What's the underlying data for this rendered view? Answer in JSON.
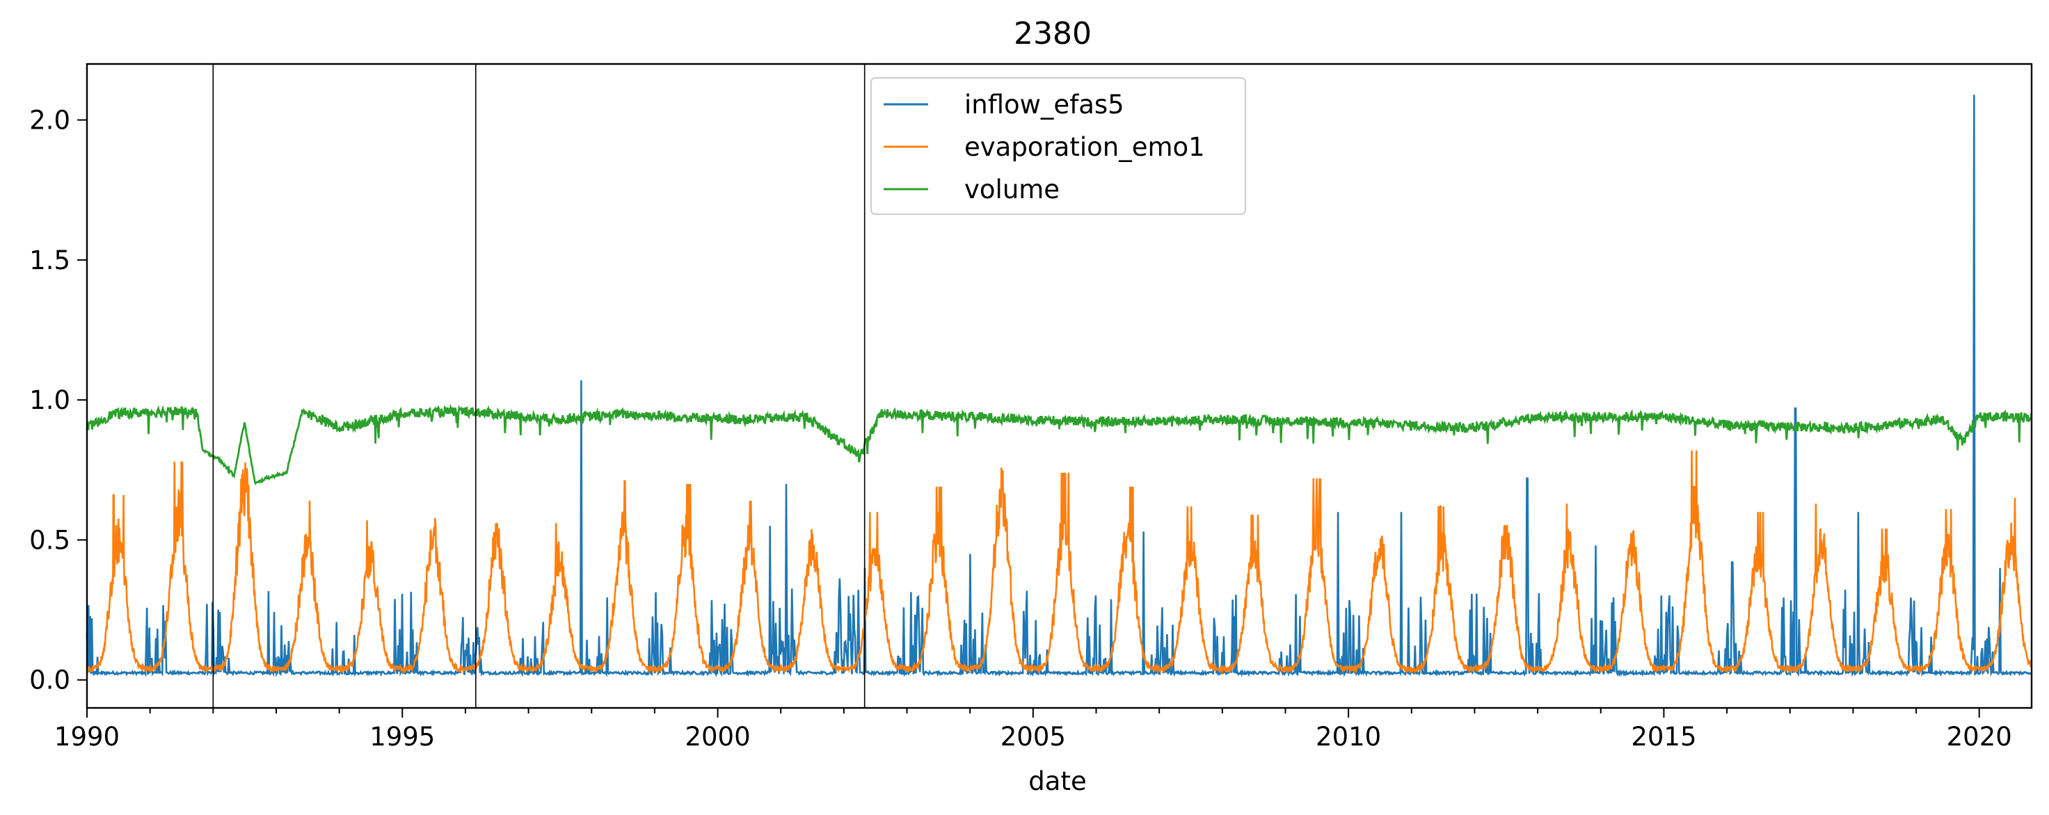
{
  "chart_data": {
    "type": "line",
    "title": "2380",
    "xlabel": "date",
    "ylabel": "",
    "xlim": [
      "1990-01-01",
      "2020-10-31"
    ],
    "ylim": [
      -0.1,
      2.2
    ],
    "x_ticks": [
      "1990",
      "1995",
      "2000",
      "2005",
      "2010",
      "2015",
      "2020"
    ],
    "y_ticks": [
      "0.0",
      "0.5",
      "1.0",
      "1.5",
      "2.0"
    ],
    "grid": false,
    "legend_position": "upper-center",
    "vertical_lines": [
      "1992-01-01",
      "1996-03-01",
      "2002-05-01"
    ],
    "series": [
      {
        "name": "inflow_efas5",
        "color": "#1f77b4",
        "baseline": 0.02,
        "spikes": [
          [
            "1997-11-01",
            1.07
          ],
          [
            "2001-02-01",
            0.7
          ],
          [
            "2000-11-01",
            0.55
          ],
          [
            "2002-05-01",
            0.4
          ],
          [
            "2012-11-01",
            0.72
          ],
          [
            "2017-02-01",
            0.97
          ],
          [
            "2019-12-01",
            2.09
          ],
          [
            "2020-05-01",
            0.4
          ],
          [
            "2006-10-01",
            0.53
          ],
          [
            "2009-11-01",
            0.6
          ],
          [
            "2010-11-01",
            0.6
          ],
          [
            "2018-02-01",
            0.6
          ],
          [
            "2016-02-01",
            0.42
          ],
          [
            "2013-12-01",
            0.48
          ],
          [
            "2004-01-01",
            0.45
          ]
        ]
      },
      {
        "name": "evaporation_emo1",
        "color": "#ff7f0e",
        "peaks": [
          [
            "1990-07-01",
            0.66
          ],
          [
            "1991-06-15",
            0.78
          ],
          [
            "1992-07-01",
            0.93
          ],
          [
            "1993-07-01",
            0.64
          ],
          [
            "1994-07-01",
            0.57
          ],
          [
            "1995-07-01",
            0.67
          ],
          [
            "1996-07-01",
            0.64
          ],
          [
            "1997-07-01",
            0.56
          ],
          [
            "1998-07-01",
            0.71
          ],
          [
            "1999-07-01",
            0.7
          ],
          [
            "2000-07-01",
            0.64
          ],
          [
            "2001-07-01",
            0.63
          ],
          [
            "2002-07-01",
            0.6
          ],
          [
            "2003-07-01",
            0.69
          ],
          [
            "2004-07-01",
            0.89
          ],
          [
            "2005-07-01",
            0.74
          ],
          [
            "2006-07-01",
            0.69
          ],
          [
            "2007-07-01",
            0.62
          ],
          [
            "2008-07-01",
            0.59
          ],
          [
            "2009-07-01",
            0.72
          ],
          [
            "2010-07-01",
            0.64
          ],
          [
            "2011-07-01",
            0.62
          ],
          [
            "2012-07-01",
            0.66
          ],
          [
            "2013-07-01",
            0.63
          ],
          [
            "2014-07-01",
            0.64
          ],
          [
            "2015-07-01",
            0.82
          ],
          [
            "2016-07-01",
            0.6
          ],
          [
            "2017-07-01",
            0.63
          ],
          [
            "2018-07-01",
            0.54
          ],
          [
            "2019-07-01",
            0.61
          ],
          [
            "2020-07-01",
            0.65
          ]
        ],
        "trough": 0.03
      },
      {
        "name": "volume",
        "color": "#2ca02c",
        "points": [
          [
            "1990-01-01",
            0.9
          ],
          [
            "1990-06-01",
            0.95
          ],
          [
            "1991-06-01",
            0.96
          ],
          [
            "1991-10-01",
            0.95
          ],
          [
            "1991-11-01",
            0.82
          ],
          [
            "1992-02-01",
            0.79
          ],
          [
            "1992-05-01",
            0.73
          ],
          [
            "1992-07-01",
            0.92
          ],
          [
            "1992-09-01",
            0.7
          ],
          [
            "1992-11-01",
            0.72
          ],
          [
            "1993-03-01",
            0.74
          ],
          [
            "1993-06-01",
            0.96
          ],
          [
            "1994-01-01",
            0.9
          ],
          [
            "1995-01-01",
            0.95
          ],
          [
            "1996-01-01",
            0.96
          ],
          [
            "1997-06-01",
            0.93
          ],
          [
            "1998-06-01",
            0.95
          ],
          [
            "1999-06-01",
            0.94
          ],
          [
            "2000-06-01",
            0.93
          ],
          [
            "2001-06-01",
            0.94
          ],
          [
            "2002-04-01",
            0.8
          ],
          [
            "2002-08-01",
            0.95
          ],
          [
            "2004-01-01",
            0.94
          ],
          [
            "2006-01-01",
            0.92
          ],
          [
            "2008-01-01",
            0.93
          ],
          [
            "2010-01-01",
            0.92
          ],
          [
            "2012-01-01",
            0.9
          ],
          [
            "2013-01-01",
            0.94
          ],
          [
            "2015-01-01",
            0.94
          ],
          [
            "2016-01-01",
            0.91
          ],
          [
            "2018-01-01",
            0.9
          ],
          [
            "2019-06-01",
            0.93
          ],
          [
            "2019-10-01",
            0.85
          ],
          [
            "2020-01-01",
            0.94
          ],
          [
            "2020-10-31",
            0.94
          ]
        ]
      }
    ]
  }
}
